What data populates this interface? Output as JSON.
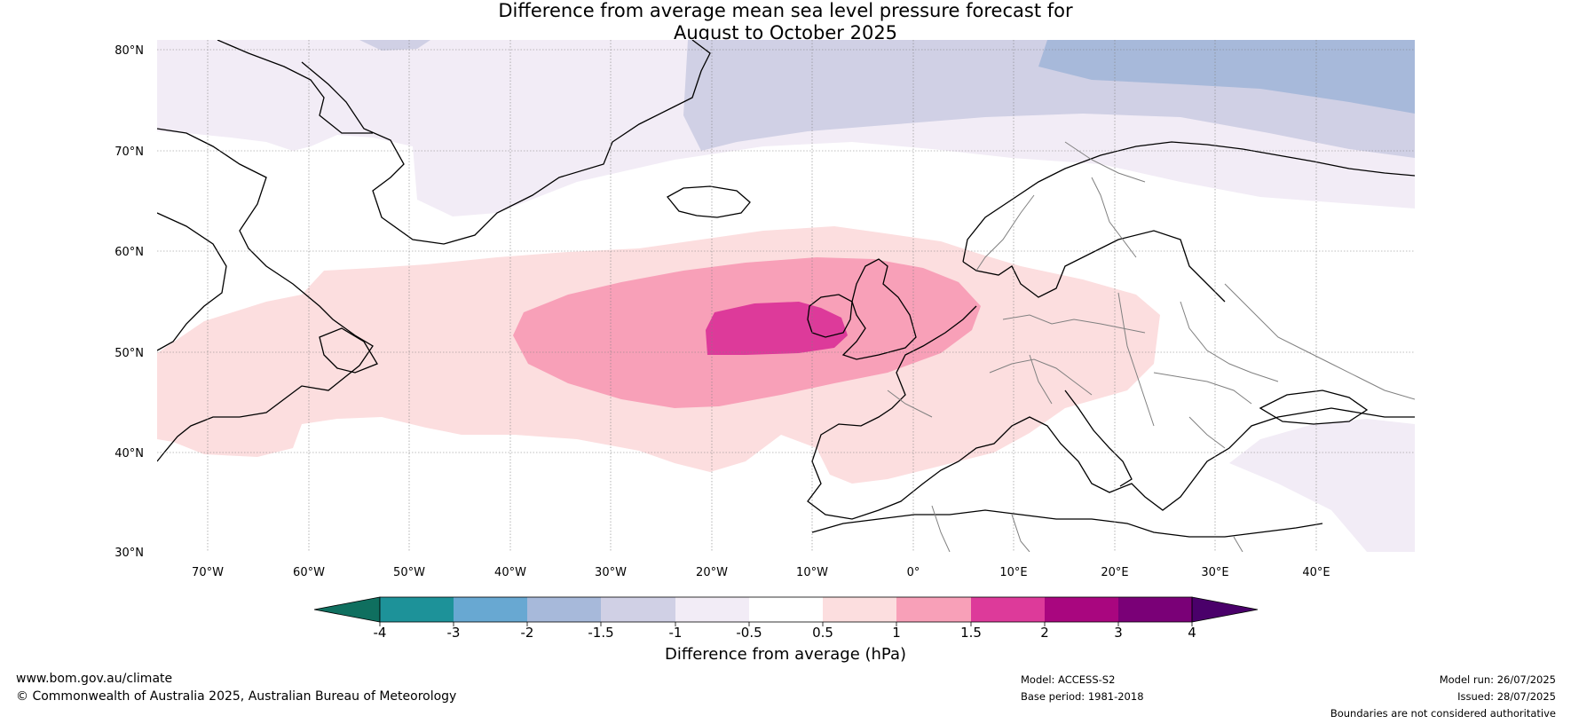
{
  "title": {
    "line1": "Difference from average mean sea level pressure forecast for",
    "line2": "August to October 2025"
  },
  "map": {
    "lat_labels": [
      "80°N",
      "70°N",
      "60°N",
      "50°N",
      "40°N",
      "30°N"
    ],
    "lon_labels": [
      "70°W",
      "60°W",
      "50°W",
      "40°W",
      "30°W",
      "20°W",
      "10°W",
      "0°",
      "10°E",
      "20°E",
      "30°E",
      "40°E"
    ],
    "coastline_color": "#000000",
    "border_color": "#808080"
  },
  "colorbar": {
    "title": "Difference from average (hPa)",
    "tick_labels": [
      "-4",
      "-3",
      "-2",
      "-1.5",
      "-1",
      "-0.5",
      "0.5",
      "1",
      "1.5",
      "2",
      "3",
      "4"
    ],
    "colors": {
      "below_-4": "#0f6f5f",
      "-4_to_-3": "#1d9299",
      "-3_to_-2": "#68a8d2",
      "-2_to_-1.5": "#a7b9da",
      "-1.5_to_-1": "#d0d0e5",
      "-1_to_-0.5": "#f2ecf6",
      "-0.5_to_0.5": "#ffffff",
      "0.5_to_1": "#fcdedf",
      "1_to_1.5": "#f8a0b8",
      "1.5_to_2": "#dd3a9a",
      "2_to_3": "#a9067f",
      "3_to_4": "#7a0077",
      "above_4": "#4a006a"
    }
  },
  "footer": {
    "website": "www.bom.gov.au/climate",
    "copyright": "© Commonwealth of Australia 2025, Australian Bureau of Meteorology",
    "model": "Model: ACCESS-S2",
    "base_period": "Base period: 1981-2018",
    "model_run": "Model run: 26/07/2025",
    "issued": "Issued: 28/07/2025",
    "disclaimer": "Boundaries are not considered authoritative"
  }
}
